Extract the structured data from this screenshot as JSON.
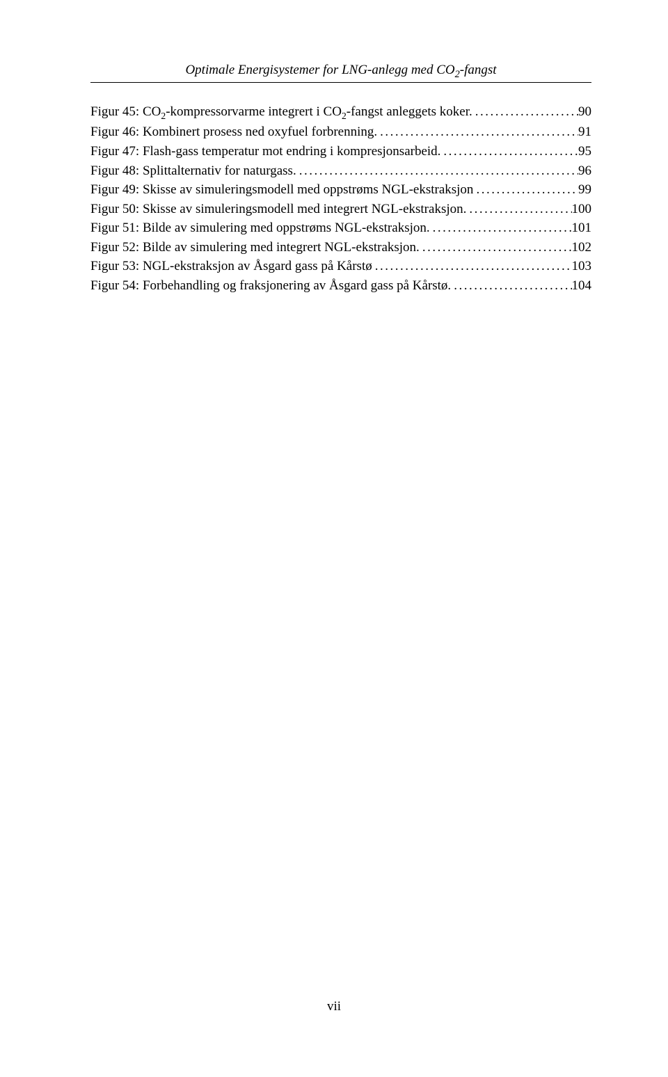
{
  "header": {
    "prefix": "Optimale Energisystemer for LNG-anlegg med CO",
    "sub": "2",
    "suffix": "-fangst"
  },
  "entries": [
    {
      "label_pre": "Figur 45: CO",
      "label_sub": "2",
      "label_mid": "-kompressorvarme integrert i CO",
      "label_sub2": "2",
      "label_post": "-fangst anleggets koker.",
      "page": "90"
    },
    {
      "label_pre": "Figur 46: Kombinert prosess ned oxyfuel forbrenning.",
      "page": "91"
    },
    {
      "label_pre": "Figur 47: Flash-gass temperatur mot endring i kompresjonsarbeid.",
      "page": "95"
    },
    {
      "label_pre": "Figur 48: Splittalternativ for naturgass.",
      "page": "96"
    },
    {
      "label_pre": "Figur 49: Skisse av simuleringsmodell med oppstrøms NGL-ekstraksjon",
      "page": "99"
    },
    {
      "label_pre": "Figur 50: Skisse av simuleringsmodell med integrert NGL-ekstraksjon.",
      "page": "100"
    },
    {
      "label_pre": "Figur 51: Bilde av simulering med oppstrøms NGL-ekstraksjon.",
      "page": "101"
    },
    {
      "label_pre": "Figur 52: Bilde av simulering med integrert NGL-ekstraksjon.",
      "page": "102"
    },
    {
      "label_pre": "Figur 53: NGL-ekstraksjon av Åsgard gass på Kårstø",
      "page": "103"
    },
    {
      "label_pre": "Figur 54: Forbehandling og fraksjonering av Åsgard gass på Kårstø.",
      "page": "104"
    }
  ],
  "footer": {
    "page_num": "vii"
  }
}
